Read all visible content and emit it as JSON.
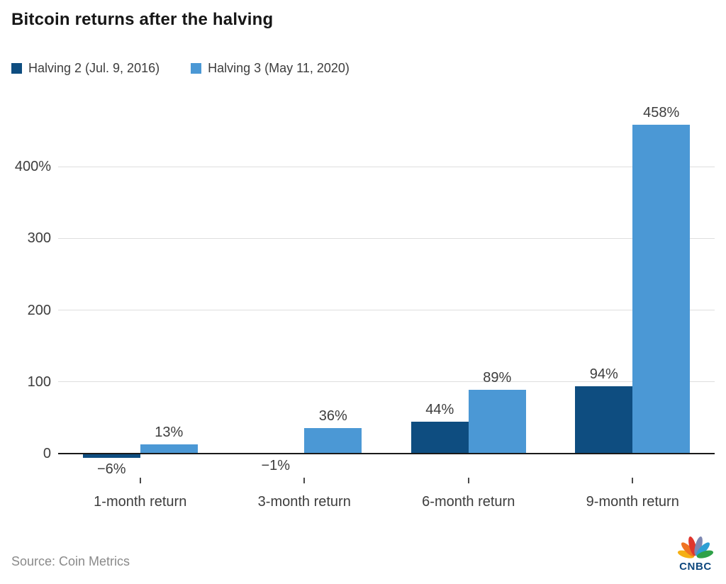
{
  "title": "Bitcoin returns after the halving",
  "source": "Source: Coin Metrics",
  "logo": {
    "text": "CNBC"
  },
  "colors": {
    "series_dark": "#0e4d80",
    "series_light": "#4b98d5",
    "grid": "#dedede",
    "axis": "#1a1a1a",
    "text": "#3d3d3d",
    "muted": "#8a8a8a",
    "logo_blue": "#0f487e"
  },
  "chart_data": {
    "type": "bar",
    "title": "Bitcoin returns after the halving",
    "categories": [
      "1-month return",
      "3-month return",
      "6-month return",
      "9-month return"
    ],
    "series": [
      {
        "name": "Halving 2 (Jul. 9, 2016)",
        "color": "#0e4d80",
        "values": [
          -6,
          -1,
          44,
          94
        ],
        "value_labels": [
          "−6%",
          "−1%",
          "44%",
          "94%"
        ]
      },
      {
        "name": "Halving 3 (May 11, 2020)",
        "color": "#4b98d5",
        "values": [
          13,
          36,
          89,
          458
        ],
        "value_labels": [
          "13%",
          "36%",
          "89%",
          "458%"
        ]
      }
    ],
    "y_axis": {
      "ticks": [
        {
          "value": 0,
          "label": "0"
        },
        {
          "value": 100,
          "label": "100"
        },
        {
          "value": 200,
          "label": "200"
        },
        {
          "value": 300,
          "label": "300"
        },
        {
          "value": 400,
          "label": "400%"
        }
      ],
      "ylim": [
        -50,
        505
      ]
    },
    "xlabel": "",
    "ylabel": "",
    "grid": true,
    "legend_position": "top-left"
  }
}
